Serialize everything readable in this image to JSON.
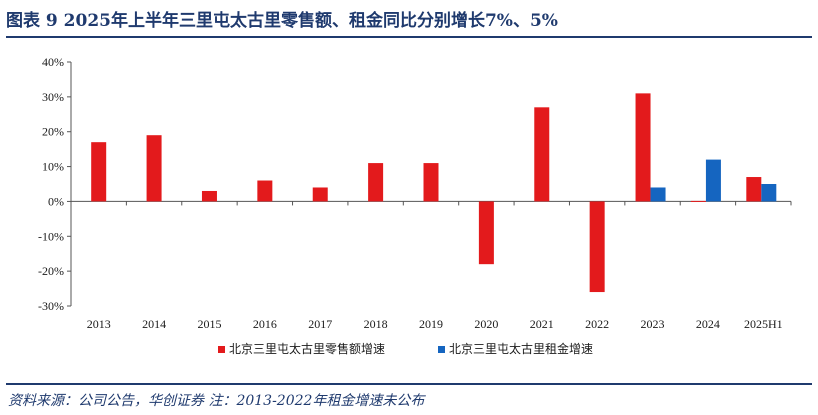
{
  "header": {
    "title": "图表 9   2025年上半年三里屯太古里零售额、租金同比分别增长7%、5%"
  },
  "footer": {
    "source": "资料来源：公司公告，华创证券   注：2013-2022年租金增速未公布"
  },
  "colors": {
    "title": "#1f3a6e",
    "series_retail": "#e31a1c",
    "series_rent": "#1565c0"
  },
  "chart_data": {
    "type": "bar",
    "title": "",
    "xlabel": "",
    "ylabel": "",
    "categories": [
      "2013",
      "2014",
      "2015",
      "2016",
      "2017",
      "2018",
      "2019",
      "2020",
      "2021",
      "2022",
      "2023",
      "2024",
      "2025H1"
    ],
    "series": [
      {
        "name": "北京三里屯太古里零售额增速",
        "values": [
          0.17,
          0.19,
          0.03,
          0.06,
          0.04,
          0.11,
          0.11,
          -0.18,
          0.27,
          -0.26,
          0.31,
          0.0,
          0.07
        ]
      },
      {
        "name": "北京三里屯太古里租金增速",
        "values": [
          null,
          null,
          null,
          null,
          null,
          null,
          null,
          null,
          null,
          null,
          0.04,
          0.12,
          0.05
        ]
      }
    ],
    "ylim": [
      -0.3,
      0.4
    ],
    "yticks": [
      -0.3,
      -0.2,
      -0.1,
      0,
      0.1,
      0.2,
      0.3,
      0.4
    ],
    "ytick_labels": [
      "-30%",
      "-20%",
      "-10%",
      "0%",
      "10%",
      "20%",
      "30%",
      "40%"
    ],
    "grid": false,
    "legend_position": "bottom"
  }
}
